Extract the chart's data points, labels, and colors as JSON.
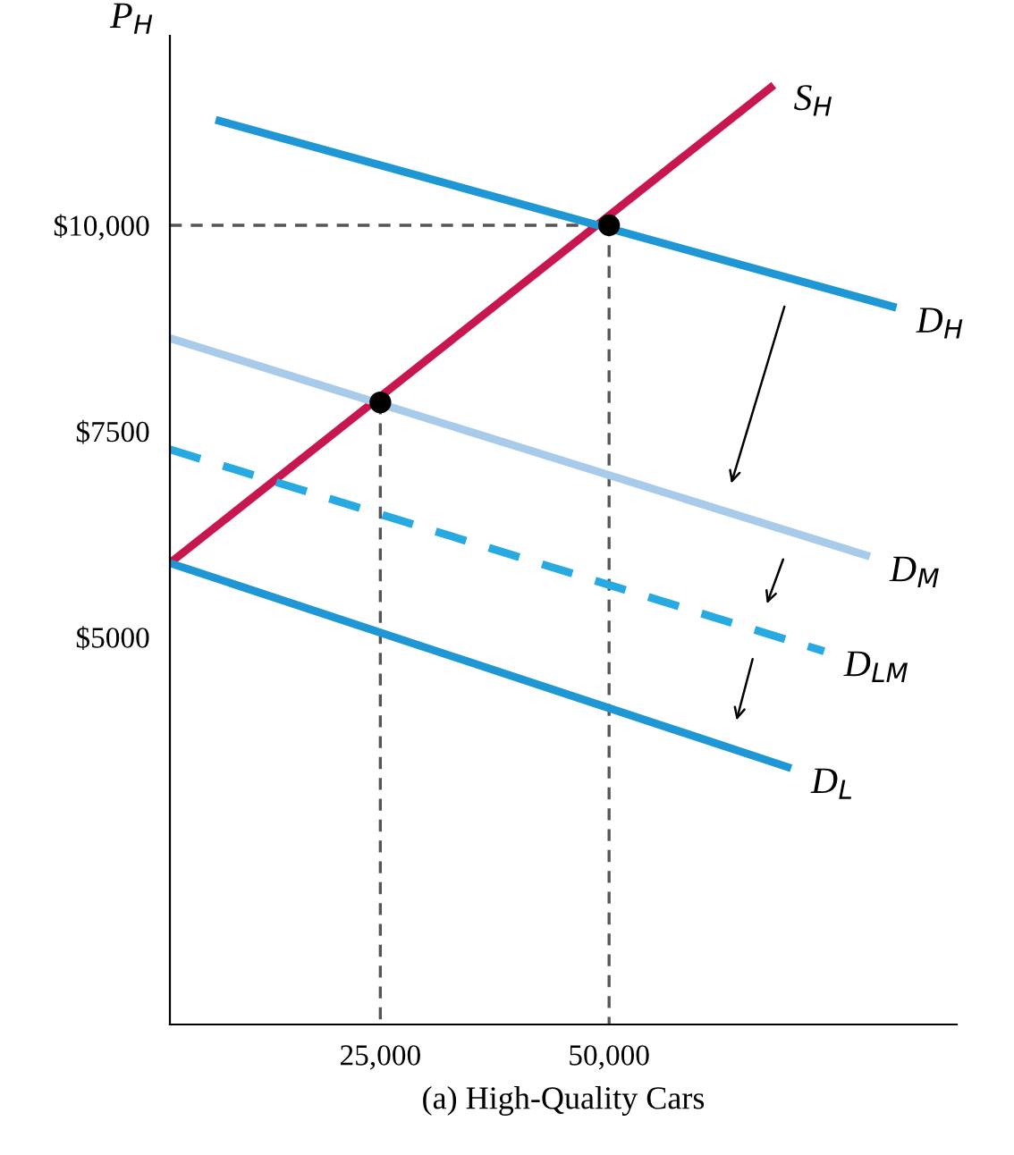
{
  "chart_data": {
    "type": "line",
    "xlabel": "(a) High-Quality Cars",
    "ylabel": "P$_{H}$",
    "xlim": [
      2000,
      88000
    ],
    "ylim": [
      300,
      12300
    ],
    "xticks": [
      {
        "value": 25000,
        "label": "25,000"
      },
      {
        "value": 50000,
        "label": "50,000"
      }
    ],
    "yticks": [
      {
        "value": 5000,
        "label": "$5000"
      },
      {
        "value": 7500,
        "label": "$7500"
      },
      {
        "value": 10000,
        "label": "$10,000"
      }
    ],
    "grid": false,
    "legend": false,
    "marker": "none",
    "line_style": "solid",
    "series": [
      {
        "name": "S$_{H}$",
        "color": "#c8174f",
        "x": [
          2000,
          68000
        ],
        "values": [
          5900,
          11700
        ]
      },
      {
        "name": "D$_{H}$",
        "color": "#1f97d4",
        "x": [
          7000,
          81400
        ],
        "values": [
          11280,
          9000
        ]
      },
      {
        "name": "D$_{M}$",
        "color": "#a9cbea",
        "x": [
          2000,
          78500
        ],
        "values": [
          8630,
          5980
        ]
      },
      {
        "name": "D$_{LM}$",
        "color": "#27a9e1",
        "x": [
          2000,
          73500
        ],
        "values": [
          7280,
          4830
        ],
        "line_style": "dashed"
      },
      {
        "name": "D$_{L}$",
        "color": "#1f97d4",
        "x": [
          2000,
          69900
        ],
        "values": [
          5900,
          3410
        ]
      },
      {
        "color": "#555555",
        "x": [
          2000,
          50000,
          50000
        ],
        "values": [
          10000,
          10000,
          300
        ],
        "line_style": "dashed"
      },
      {
        "color": "#555555",
        "x": [
          25000,
          25000
        ],
        "values": [
          7850,
          300
        ],
        "line_style": "dashed"
      },
      {
        "type": "scatter",
        "color": "#000000",
        "x": [
          25000,
          50000
        ],
        "values": [
          7850,
          10000
        ],
        "marker": "circle"
      }
    ]
  }
}
